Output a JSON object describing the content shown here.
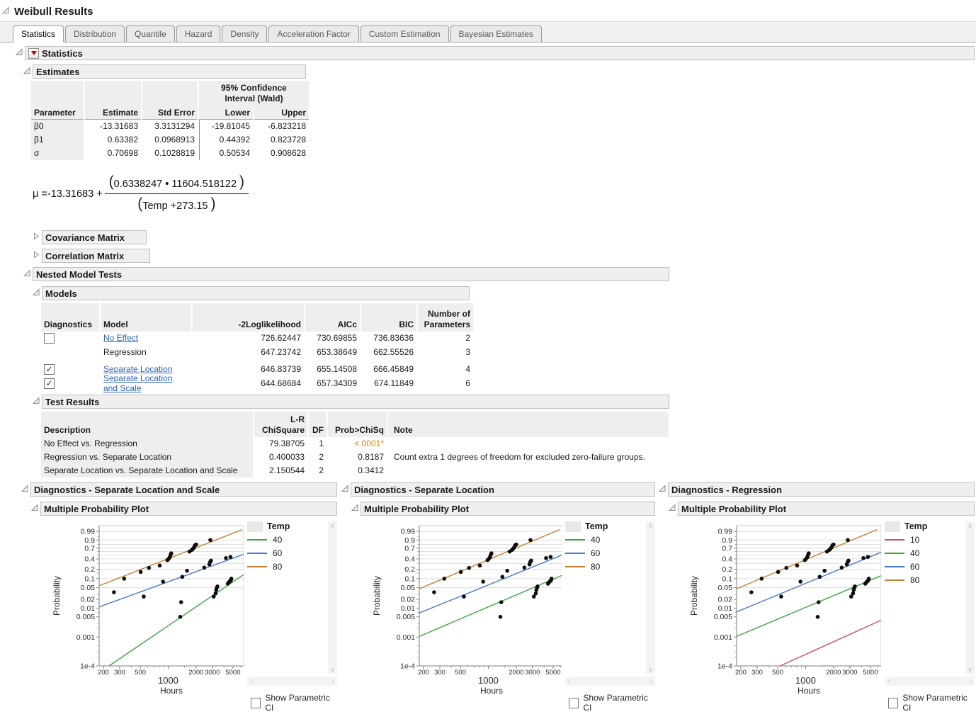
{
  "window": {
    "title": "Weibull Results"
  },
  "icons": {
    "check": "✓",
    "scroll_up": "∧",
    "scroll_down": "∨",
    "scroll_left": "‹",
    "scroll_right": "›"
  },
  "tabs": [
    {
      "label": "Statistics",
      "active": true
    },
    {
      "label": "Distribution",
      "active": false
    },
    {
      "label": "Quantile",
      "active": false
    },
    {
      "label": "Hazard",
      "active": false
    },
    {
      "label": "Density",
      "active": false
    },
    {
      "label": "Acceleration Factor",
      "active": false
    },
    {
      "label": "Custom Estimation",
      "active": false
    },
    {
      "label": "Bayesian Estimates",
      "active": false
    }
  ],
  "sections": {
    "statistics": {
      "title": "Statistics"
    },
    "estimates": {
      "title": "Estimates",
      "group_header_line1": "95% Confidence",
      "group_header_line2": "Interval (Wald)",
      "columns": [
        "Parameter",
        "Estimate",
        "Std Error",
        "Lower",
        "Upper"
      ],
      "rows": [
        [
          "β0",
          "-13.31683",
          "3.3131294",
          "-19.81045",
          "-6.823218"
        ],
        [
          "β1",
          "0.63382",
          "0.0968913",
          "0.44392",
          "0.823728"
        ],
        [
          "σ",
          "0.70698",
          "0.1028819",
          "0.50534",
          "0.908628"
        ]
      ]
    },
    "formula": {
      "mu": "μ",
      "eq": "=",
      "intercept": "-13.31683",
      "plus": "+",
      "numerator": "0.6338247 • 11604.518122",
      "denominator": "Temp +273.15",
      "paren_open": "(",
      "paren_close": ")"
    },
    "covariance": {
      "title": "Covariance Matrix",
      "collapsed": true
    },
    "correlation": {
      "title": "Correlation Matrix",
      "collapsed": true
    },
    "nested": {
      "title": "Nested Model Tests"
    },
    "models": {
      "title": "Models",
      "columns": [
        "Diagnostics",
        "Model",
        "-2Loglikelihood",
        "AICc",
        "BIC",
        "Number of Parameters"
      ],
      "last_col_line1": "Number of",
      "last_col_line2": "Parameters",
      "rows": [
        {
          "checkbox": "unchecked",
          "model": "No Effect",
          "link": true,
          "loglik": "726.62447",
          "aicc": "730.69855",
          "bic": "736.83636",
          "params": "2"
        },
        {
          "checkbox": "none",
          "model": "Regression",
          "link": false,
          "loglik": "647.23742",
          "aicc": "653.38649",
          "bic": "662.55526",
          "params": "3"
        },
        {
          "checkbox": "checked",
          "model": "Separate Location",
          "link": true,
          "loglik": "646.83739",
          "aicc": "655.14508",
          "bic": "666.45849",
          "params": "4"
        },
        {
          "checkbox": "checked",
          "model": "Separate Location and Scale",
          "link": true,
          "loglik": "644.68684",
          "aicc": "657.34309",
          "bic": "674.11849",
          "params": "6"
        }
      ]
    },
    "test_results": {
      "title": "Test Results",
      "col_description": "Description",
      "col_chisq_line1": "L-R",
      "col_chisq_line2": "ChiSquare",
      "col_df": "DF",
      "col_prob": "Prob>ChiSq",
      "col_note": "Note",
      "rows": [
        {
          "description": "No Effect vs. Regression",
          "chisquare": "79.38705",
          "df": "1",
          "prob": "<.0001*",
          "prob_highlight": true,
          "note": ""
        },
        {
          "description": "Regression vs. Separate Location",
          "chisquare": "0.400033",
          "df": "2",
          "prob": "0.8187",
          "prob_highlight": false,
          "note": "Count extra 1 degrees of freedom for excluded zero-failure groups."
        },
        {
          "description": "Separate Location vs. Separate Location and Scale",
          "chisquare": "2.150544",
          "df": "2",
          "prob": "0.3412",
          "prob_highlight": false,
          "note": ""
        }
      ]
    }
  },
  "diagnostics_panels": [
    {
      "title": "Diagnostics - Separate Location and Scale",
      "subtitle": "Multiple Probability Plot",
      "legend_title": "Temp",
      "show_ci_label": "Show Parametric CI",
      "show_ci_checked": false
    },
    {
      "title": "Diagnostics - Separate Location",
      "subtitle": "Multiple Probability Plot",
      "legend_title": "Temp",
      "show_ci_label": "Show Parametric CI",
      "show_ci_checked": false
    },
    {
      "title": "Diagnostics - Regression",
      "subtitle": "Multiple Probability Plot",
      "legend_title": "Temp",
      "show_ci_label": "Show Parametric CI",
      "show_ci_checked": false
    }
  ],
  "chart_data": [
    {
      "type": "scatter",
      "title": "Diagnostics - Separate Location and Scale",
      "xlabel": "Hours",
      "ylabel": "Probability",
      "x_scale": "log",
      "y_scale": "weibull-probability",
      "xlim": [
        180,
        6520
      ],
      "ylim": [
        0.0001,
        0.999
      ],
      "x_ticks": [
        200,
        300,
        500,
        1000,
        2000,
        3000,
        5000
      ],
      "x_tick_labels": [
        "200",
        "300",
        "500",
        "1000",
        "2000",
        "3000",
        "5000"
      ],
      "x_minor_ticks": [
        400,
        600,
        700,
        800,
        900,
        1500,
        4000,
        6000
      ],
      "y_ticks": [
        0.99,
        0.9,
        0.7,
        0.4,
        0.2,
        0.1,
        0.05,
        0.02,
        0.01,
        0.005,
        0.001,
        0.0001
      ],
      "y_tick_labels": [
        "0.99",
        "0.9",
        "0.7",
        "0.4",
        "0.2",
        "0.1",
        "0.05",
        "0.02",
        "0.01",
        "0.005",
        "0.001",
        "1e-4"
      ],
      "y_minor_ticks": [
        0.95,
        0.8,
        0.6,
        0.5,
        0.3,
        0.15,
        0.03,
        0.015,
        0.007,
        0.003,
        0.002,
        0.0005,
        0.0003,
        0.0002
      ],
      "gridlines": [
        0.99,
        0.9,
        0.8,
        0.7,
        0.6,
        0.5,
        0.4,
        0.3,
        0.2,
        0.1,
        0.05
      ],
      "legend_title": "Temp",
      "series": [
        {
          "name": "40",
          "color": "#3fa43f",
          "line": [
            [
              230,
              0.0001
            ],
            [
              6500,
              0.135
            ]
          ]
        },
        {
          "name": "60",
          "color": "#4678cb",
          "line": [
            [
              180,
              0.011
            ],
            [
              6500,
              0.52
            ]
          ]
        },
        {
          "name": "80",
          "color": "#c87e33",
          "line": [
            [
              180,
              0.058
            ],
            [
              6300,
              0.995
            ]
          ]
        }
      ],
      "points": [
        [
          260,
          0.035
        ],
        [
          545,
          0.025
        ],
        [
          880,
          0.08
        ],
        [
          1380,
          0.016
        ],
        [
          1420,
          0.115
        ],
        [
          1600,
          0.18
        ],
        [
          2450,
          0.225
        ],
        [
          2780,
          0.28
        ],
        [
          2840,
          0.33
        ],
        [
          2900,
          0.36
        ],
        [
          4200,
          0.42
        ],
        [
          4700,
          0.45
        ],
        [
          335,
          0.1
        ],
        [
          505,
          0.165
        ],
        [
          620,
          0.22
        ],
        [
          810,
          0.26
        ],
        [
          980,
          0.37
        ],
        [
          1010,
          0.4
        ],
        [
          1040,
          0.44
        ],
        [
          1060,
          0.5
        ],
        [
          1080,
          0.55
        ],
        [
          1700,
          0.6
        ],
        [
          1800,
          0.65
        ],
        [
          1850,
          0.68
        ],
        [
          1900,
          0.72
        ],
        [
          1950,
          0.78
        ],
        [
          2000,
          0.8
        ],
        [
          2850,
          0.9
        ],
        [
          1350,
          0.005
        ],
        [
          3100,
          0.025
        ],
        [
          3250,
          0.032
        ],
        [
          3300,
          0.042
        ],
        [
          3350,
          0.05
        ],
        [
          3400,
          0.055
        ],
        [
          4400,
          0.068
        ],
        [
          4500,
          0.075
        ],
        [
          4600,
          0.08
        ],
        [
          4700,
          0.085
        ],
        [
          4750,
          0.09
        ],
        [
          4800,
          0.1
        ]
      ]
    },
    {
      "type": "scatter",
      "title": "Diagnostics - Separate Location",
      "xlabel": "Hours",
      "ylabel": "Probability",
      "x_scale": "log",
      "y_scale": "weibull-probability",
      "xlim": [
        180,
        6520
      ],
      "ylim": [
        0.0001,
        0.999
      ],
      "x_ticks": [
        200,
        300,
        500,
        1000,
        2000,
        3000,
        5000
      ],
      "x_tick_labels": [
        "200",
        "300",
        "500",
        "1000",
        "2000",
        "3000",
        "5000"
      ],
      "x_minor_ticks": [
        400,
        600,
        700,
        800,
        900,
        1500,
        4000,
        6000
      ],
      "y_ticks": [
        0.99,
        0.9,
        0.7,
        0.4,
        0.2,
        0.1,
        0.05,
        0.02,
        0.01,
        0.005,
        0.001,
        0.0001
      ],
      "y_tick_labels": [
        "0.99",
        "0.9",
        "0.7",
        "0.4",
        "0.2",
        "0.1",
        "0.05",
        "0.02",
        "0.01",
        "0.005",
        "0.001",
        "1e-4"
      ],
      "y_minor_ticks": [
        0.95,
        0.8,
        0.6,
        0.5,
        0.3,
        0.15,
        0.03,
        0.015,
        0.007,
        0.003,
        0.002,
        0.0005,
        0.0003,
        0.0002
      ],
      "gridlines": [
        0.99,
        0.9,
        0.8,
        0.7,
        0.6,
        0.5,
        0.4,
        0.3,
        0.2,
        0.1,
        0.05
      ],
      "legend_title": "Temp",
      "series": [
        {
          "name": "40",
          "color": "#3fa43f",
          "line": [
            [
              180,
              0.00105
            ],
            [
              6500,
              0.135
            ]
          ]
        },
        {
          "name": "60",
          "color": "#4678cb",
          "line": [
            [
              180,
              0.0068
            ],
            [
              6500,
              0.52
            ]
          ]
        },
        {
          "name": "80",
          "color": "#c87e33",
          "line": [
            [
              180,
              0.046
            ],
            [
              5900,
              0.995
            ]
          ]
        }
      ],
      "points": [
        [
          260,
          0.035
        ],
        [
          545,
          0.025
        ],
        [
          880,
          0.08
        ],
        [
          1380,
          0.016
        ],
        [
          1420,
          0.115
        ],
        [
          1600,
          0.18
        ],
        [
          2450,
          0.225
        ],
        [
          2780,
          0.28
        ],
        [
          2840,
          0.33
        ],
        [
          2900,
          0.36
        ],
        [
          4200,
          0.42
        ],
        [
          4700,
          0.45
        ],
        [
          335,
          0.1
        ],
        [
          505,
          0.165
        ],
        [
          620,
          0.22
        ],
        [
          810,
          0.26
        ],
        [
          980,
          0.37
        ],
        [
          1010,
          0.4
        ],
        [
          1040,
          0.44
        ],
        [
          1060,
          0.5
        ],
        [
          1080,
          0.55
        ],
        [
          1700,
          0.6
        ],
        [
          1800,
          0.65
        ],
        [
          1850,
          0.68
        ],
        [
          1900,
          0.72
        ],
        [
          1950,
          0.78
        ],
        [
          2000,
          0.8
        ],
        [
          2850,
          0.9
        ],
        [
          1350,
          0.005
        ],
        [
          3100,
          0.025
        ],
        [
          3250,
          0.032
        ],
        [
          3300,
          0.042
        ],
        [
          3350,
          0.05
        ],
        [
          3400,
          0.055
        ],
        [
          4400,
          0.068
        ],
        [
          4500,
          0.075
        ],
        [
          4600,
          0.08
        ],
        [
          4700,
          0.085
        ],
        [
          4750,
          0.09
        ],
        [
          4800,
          0.1
        ]
      ]
    },
    {
      "type": "scatter",
      "title": "Diagnostics - Regression",
      "xlabel": "Hours",
      "ylabel": "Probability",
      "x_scale": "log",
      "y_scale": "weibull-probability",
      "xlim": [
        180,
        6520
      ],
      "ylim": [
        0.0001,
        0.999
      ],
      "x_ticks": [
        200,
        300,
        500,
        1000,
        2000,
        3000,
        5000
      ],
      "x_tick_labels": [
        "200",
        "300",
        "500",
        "1000",
        "2000",
        "3000",
        "5000"
      ],
      "x_minor_ticks": [
        400,
        600,
        700,
        800,
        900,
        1500,
        4000,
        6000
      ],
      "y_ticks": [
        0.99,
        0.9,
        0.7,
        0.4,
        0.2,
        0.1,
        0.05,
        0.02,
        0.01,
        0.005,
        0.001,
        0.0001
      ],
      "y_tick_labels": [
        "0.99",
        "0.9",
        "0.7",
        "0.4",
        "0.2",
        "0.1",
        "0.05",
        "0.02",
        "0.01",
        "0.005",
        "0.001",
        "1e-4"
      ],
      "y_minor_ticks": [
        0.95,
        0.8,
        0.6,
        0.5,
        0.3,
        0.15,
        0.03,
        0.015,
        0.007,
        0.003,
        0.002,
        0.0005,
        0.0003,
        0.0002
      ],
      "gridlines": [
        0.99,
        0.9,
        0.8,
        0.7,
        0.6,
        0.5,
        0.4,
        0.3,
        0.2,
        0.1,
        0.05
      ],
      "legend_title": "Temp",
      "series": [
        {
          "name": "10",
          "color": "#c9505e",
          "line": [
            [
              530,
              0.0001
            ],
            [
              6500,
              0.0038
            ]
          ]
        },
        {
          "name": "40",
          "color": "#3fa43f",
          "line": [
            [
              180,
              0.00105
            ],
            [
              6500,
              0.125
            ]
          ]
        },
        {
          "name": "60",
          "color": "#4678cb",
          "line": [
            [
              180,
              0.0074
            ],
            [
              6500,
              0.58
            ]
          ]
        },
        {
          "name": "80",
          "color": "#c87e33",
          "line": [
            [
              180,
              0.046
            ],
            [
              5900,
              0.995
            ]
          ]
        }
      ],
      "points": [
        [
          260,
          0.035
        ],
        [
          545,
          0.025
        ],
        [
          880,
          0.08
        ],
        [
          1380,
          0.016
        ],
        [
          1420,
          0.115
        ],
        [
          1600,
          0.18
        ],
        [
          2450,
          0.225
        ],
        [
          2780,
          0.28
        ],
        [
          2840,
          0.33
        ],
        [
          2900,
          0.36
        ],
        [
          4200,
          0.42
        ],
        [
          4700,
          0.45
        ],
        [
          335,
          0.1
        ],
        [
          505,
          0.165
        ],
        [
          620,
          0.22
        ],
        [
          810,
          0.26
        ],
        [
          980,
          0.37
        ],
        [
          1010,
          0.4
        ],
        [
          1040,
          0.44
        ],
        [
          1060,
          0.5
        ],
        [
          1080,
          0.55
        ],
        [
          1700,
          0.6
        ],
        [
          1800,
          0.65
        ],
        [
          1850,
          0.68
        ],
        [
          1900,
          0.72
        ],
        [
          1950,
          0.78
        ],
        [
          2000,
          0.8
        ],
        [
          2850,
          0.9
        ],
        [
          1350,
          0.005
        ],
        [
          3100,
          0.025
        ],
        [
          3250,
          0.032
        ],
        [
          3300,
          0.042
        ],
        [
          3350,
          0.05
        ],
        [
          3400,
          0.055
        ],
        [
          4400,
          0.068
        ],
        [
          4500,
          0.075
        ],
        [
          4600,
          0.08
        ],
        [
          4700,
          0.085
        ],
        [
          4750,
          0.09
        ],
        [
          4800,
          0.1
        ]
      ]
    }
  ]
}
